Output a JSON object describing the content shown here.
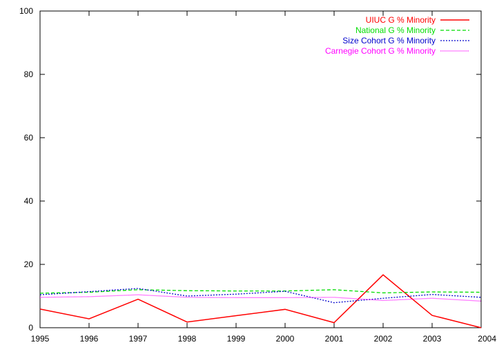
{
  "chart_data": {
    "type": "line",
    "title": "",
    "xlabel": "",
    "ylabel": "",
    "x": [
      1995,
      1996,
      1997,
      1998,
      1999,
      2000,
      2001,
      2002,
      2003,
      2004
    ],
    "xlim": [
      1995,
      2004
    ],
    "ylim": [
      0,
      100
    ],
    "x_ticks": [
      1995,
      1996,
      1997,
      1998,
      1999,
      2000,
      2001,
      2002,
      2003,
      2004
    ],
    "y_ticks": [
      0,
      20,
      40,
      60,
      80,
      100
    ],
    "grid": false,
    "legend_position": "top-right",
    "series": [
      {
        "name": "UIUC G % Minority",
        "color": "#ff0000",
        "dash": "solid",
        "values": [
          5.9,
          2.8,
          9.0,
          1.8,
          3.8,
          5.8,
          1.6,
          16.7,
          3.9,
          0.0
        ]
      },
      {
        "name": "National G % Minority",
        "color": "#00dd00",
        "dash": "dashed",
        "values": [
          10.9,
          11.2,
          12.0,
          11.7,
          11.6,
          11.6,
          12.0,
          11.0,
          11.3,
          11.2
        ]
      },
      {
        "name": "Size Cohort G % Minority",
        "color": "#0000cc",
        "dash": "dotted",
        "values": [
          10.4,
          11.4,
          12.4,
          10.0,
          10.6,
          11.5,
          7.9,
          9.3,
          10.5,
          9.6
        ]
      },
      {
        "name": "Carnegie Cohort G % Minority",
        "color": "#ff00ff",
        "dash": "fine-dotted",
        "values": [
          9.6,
          9.8,
          10.4,
          9.6,
          9.5,
          9.5,
          9.6,
          8.6,
          9.3,
          8.4
        ]
      }
    ]
  }
}
